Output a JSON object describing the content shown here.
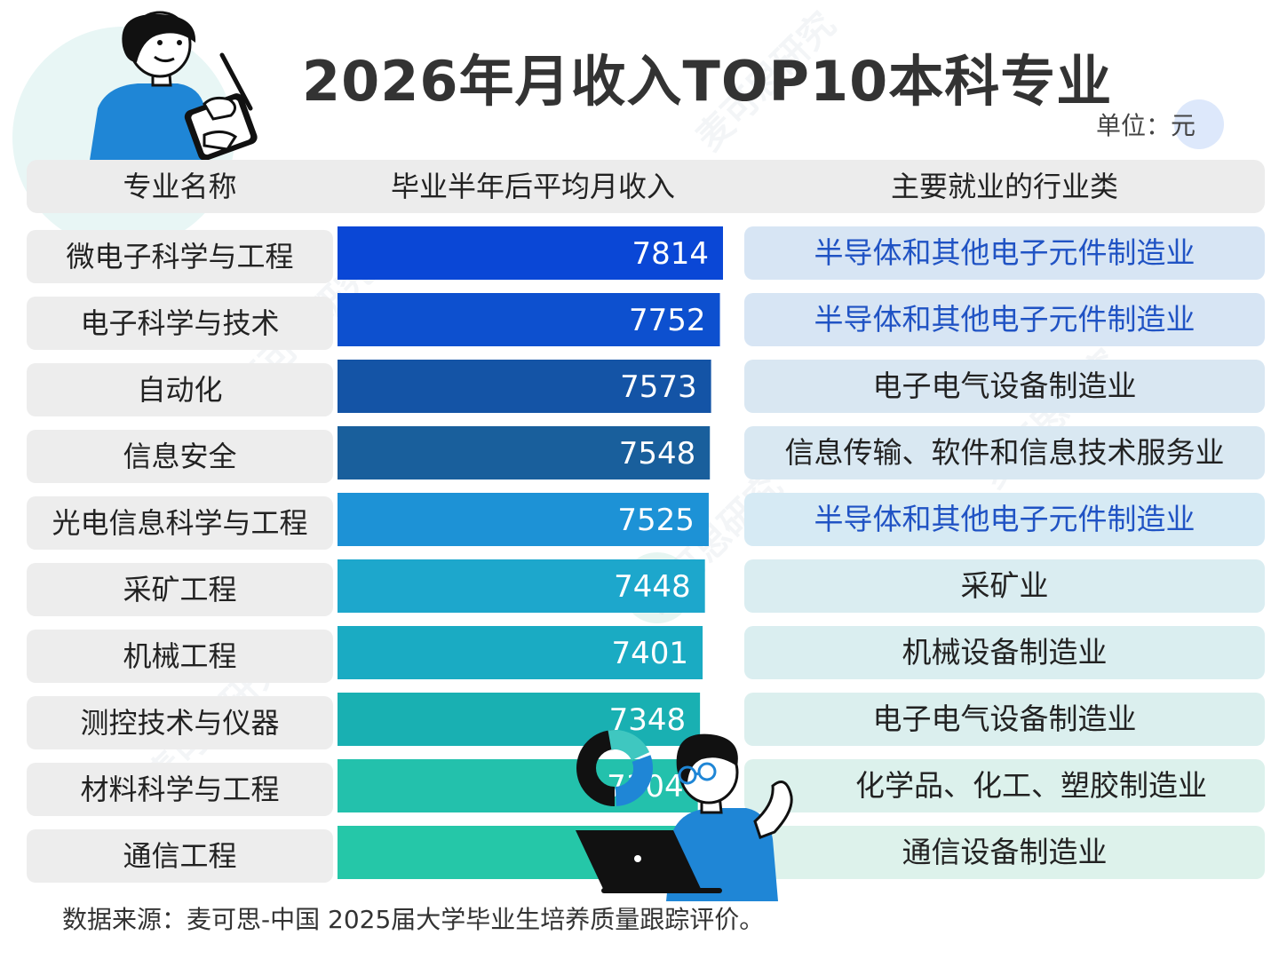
{
  "title": "2026年月收入TOP10本科专业",
  "unit_label": "单位：元",
  "header": {
    "major": "专业名称",
    "income": "毕业半年后平均月收入",
    "industry": "主要就业的行业类"
  },
  "chart_data": {
    "type": "bar",
    "orientation": "horizontal",
    "categories": [
      "微电子科学与工程",
      "电子科学与技术",
      "自动化",
      "信息安全",
      "光电信息科学与工程",
      "采矿工程",
      "机械工程",
      "测控技术与仪器",
      "材料科学与工程",
      "通信工程"
    ],
    "values": [
      7814,
      7752,
      7573,
      7548,
      7525,
      7448,
      7401,
      7348,
      7304,
      7249
    ],
    "bar_colors": [
      "#0a47d6",
      "#0d50cf",
      "#1454a6",
      "#195f9c",
      "#1d92d6",
      "#1da7cc",
      "#1aabc3",
      "#19b0b2",
      "#23c1ac",
      "#25c7a8"
    ]
  },
  "rows": [
    {
      "major": "微电子科学与工程",
      "value": "7814",
      "industry": "半导体和其他电子元件制造业",
      "industry_color": "#2053c4",
      "industry_bg": "#d7e5f4"
    },
    {
      "major": "电子科学与技术",
      "value": "7752",
      "industry": "半导体和其他电子元件制造业",
      "industry_color": "#2053c4",
      "industry_bg": "#d7e5f4"
    },
    {
      "major": "自动化",
      "value": "7573",
      "industry": "电子电气设备制造业",
      "industry_color": "#222222",
      "industry_bg": "#d9e7f2"
    },
    {
      "major": "信息安全",
      "value": "7548",
      "industry": "信息传输、软件和信息技术服务业",
      "industry_color": "#222222",
      "industry_bg": "#d9e8f2"
    },
    {
      "major": "光电信息科学与工程",
      "value": "7525",
      "industry": "半导体和其他电子元件制造业",
      "industry_color": "#2053c4",
      "industry_bg": "#d6eaf4"
    },
    {
      "major": "采矿工程",
      "value": "7448",
      "industry": "采矿业",
      "industry_color": "#222222",
      "industry_bg": "#daedf1"
    },
    {
      "major": "机械工程",
      "value": "7401",
      "industry": "机械设备制造业",
      "industry_color": "#222222",
      "industry_bg": "#daeef0"
    },
    {
      "major": "测控技术与仪器",
      "value": "7348",
      "industry": "电子电气设备制造业",
      "industry_color": "#222222",
      "industry_bg": "#dbefee"
    },
    {
      "major": "材料科学与工程",
      "value": "7304",
      "industry": "化学品、化工、塑胶制造业",
      "industry_color": "#222222",
      "industry_bg": "#dcf1ec"
    },
    {
      "major": "通信工程",
      "value": "7249",
      "industry": "通信设备制造业",
      "industry_color": "#222222",
      "industry_bg": "#ddf2eb"
    }
  ],
  "source": "数据来源：麦可思-中国 2025届大学毕业生培养质量跟踪评价。",
  "watermark": "麦可思研究"
}
